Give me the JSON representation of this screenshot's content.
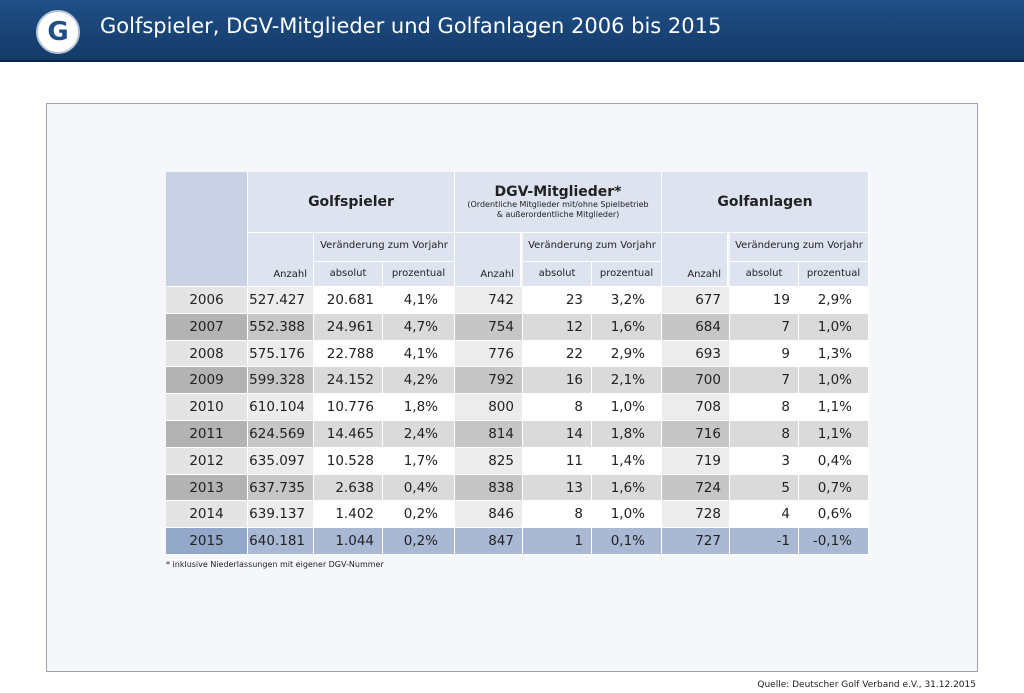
{
  "header": {
    "logo": "G",
    "title": "Golfspieler, DGV-Mitglieder und Golfanlagen 2006 bis 2015"
  },
  "table": {
    "groups": [
      {
        "title": "Golfspieler"
      },
      {
        "title": "DGV-Mitglieder*",
        "subtitle": [
          "(Ordentliche Mitglieder mit/ohne Spielbetrieb",
          "& außerordentliche Mitglieder)"
        ]
      },
      {
        "title": "Golfanlagen"
      }
    ],
    "change_label": "Veränderung zum Vorjahr",
    "columns": [
      "Anzahl",
      "absolut",
      "prozentual"
    ],
    "rows": [
      [
        "2006",
        "527.427",
        "20.681",
        "4,1%",
        "742",
        "23",
        "3,2%",
        "677",
        "19",
        "2,9%"
      ],
      [
        "2007",
        "552.388",
        "24.961",
        "4,7%",
        "754",
        "12",
        "1,6%",
        "684",
        "7",
        "1,0%"
      ],
      [
        "2008",
        "575.176",
        "22.788",
        "4,1%",
        "776",
        "22",
        "2,9%",
        "693",
        "9",
        "1,3%"
      ],
      [
        "2009",
        "599.328",
        "24.152",
        "4,2%",
        "792",
        "16",
        "2,1%",
        "700",
        "7",
        "1,0%"
      ],
      [
        "2010",
        "610.104",
        "10.776",
        "1,8%",
        "800",
        "8",
        "1,0%",
        "708",
        "8",
        "1,1%"
      ],
      [
        "2011",
        "624.569",
        "14.465",
        "2,4%",
        "814",
        "14",
        "1,8%",
        "716",
        "8",
        "1,1%"
      ],
      [
        "2012",
        "635.097",
        "10.528",
        "1,7%",
        "825",
        "11",
        "1,4%",
        "719",
        "3",
        "0,4%"
      ],
      [
        "2013",
        "637.735",
        "2.638",
        "0,4%",
        "838",
        "13",
        "1,6%",
        "724",
        "5",
        "0,7%"
      ],
      [
        "2014",
        "639.137",
        "1.402",
        "0,2%",
        "846",
        "8",
        "1,0%",
        "728",
        "4",
        "0,6%"
      ],
      [
        "2015",
        "640.181",
        "1.044",
        "0,2%",
        "847",
        "1",
        "0,1%",
        "727",
        "-1",
        "-0,1%"
      ]
    ],
    "footnote": "* inklusive Niederlassungen mit eigener DGV-Nummer"
  },
  "source": "Quelle: Deutscher Golf Verband e.V., 31.12.2015"
}
